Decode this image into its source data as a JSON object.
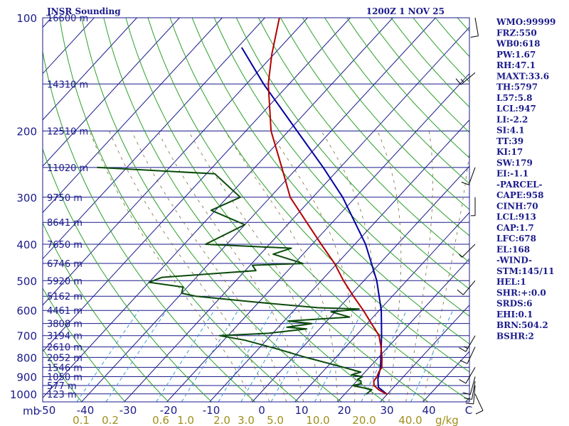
{
  "chart_data": {
    "type": "skew-t",
    "title": "JNSR Sounding",
    "valid_time": "1200Z  1 NOV 25",
    "pressure_label": "mb",
    "moisture_unit": "g/kg",
    "pressure_levels": [
      100,
      200,
      300,
      400,
      500,
      600,
      700,
      800,
      900,
      1000
    ],
    "height_labels": [
      {
        "p": 100,
        "label": "16600 m"
      },
      {
        "p": 150,
        "label": "14310 m"
      },
      {
        "p": 200,
        "label": "12510 m"
      },
      {
        "p": 250,
        "label": "11020 m"
      },
      {
        "p": 300,
        "label": "9750 m"
      },
      {
        "p": 350,
        "label": "8641 m"
      },
      {
        "p": 400,
        "label": "7650 m"
      },
      {
        "p": 450,
        "label": "6746 m"
      },
      {
        "p": 500,
        "label": "5920 m"
      },
      {
        "p": 550,
        "label": "5162 m"
      },
      {
        "p": 600,
        "label": "4461 m"
      },
      {
        "p": 650,
        "label": "3808 m"
      },
      {
        "p": 700,
        "label": "3194 m"
      },
      {
        "p": 750,
        "label": "2610 m"
      },
      {
        "p": 800,
        "label": "2052 m"
      },
      {
        "p": 850,
        "label": "1546 m"
      },
      {
        "p": 900,
        "label": "1050 m"
      },
      {
        "p": 950,
        "label": "577 m"
      },
      {
        "p": 1000,
        "label": "123 m"
      }
    ],
    "temperature_ticks": [
      "-50",
      "-40",
      "-30",
      "-20",
      "-10",
      "0",
      "10",
      "20",
      "30",
      "40",
      "C"
    ],
    "mixing_ratio_ticks": [
      "0.1",
      "0.2",
      "0.6",
      "1.0",
      "2.0",
      "3.0",
      "5.0",
      "10.0",
      "20.0",
      "40.0"
    ],
    "temperature_profile": [
      [
        1003,
        30.0
      ],
      [
        990,
        28.6
      ],
      [
        975,
        27.0
      ],
      [
        950,
        25.0
      ],
      [
        925,
        24.0
      ],
      [
        900,
        23.8
      ],
      [
        875,
        23.2
      ],
      [
        850,
        22.9
      ],
      [
        800,
        20.8
      ],
      [
        750,
        18.3
      ],
      [
        700,
        15.4
      ],
      [
        650,
        11.0
      ],
      [
        600,
        6.3
      ],
      [
        550,
        0.9
      ],
      [
        500,
        -4.8
      ],
      [
        450,
        -10.6
      ],
      [
        400,
        -17.9
      ],
      [
        350,
        -26.0
      ],
      [
        300,
        -35.3
      ],
      [
        250,
        -43.7
      ],
      [
        200,
        -54.1
      ],
      [
        150,
        -64.9
      ],
      [
        125,
        -70.5
      ],
      [
        100,
        -76.6
      ]
    ],
    "dewpoint_profile": [
      [
        1003,
        25.0
      ],
      [
        975,
        25.4
      ],
      [
        950,
        20.0
      ],
      [
        940,
        21.6
      ],
      [
        925,
        21.0
      ],
      [
        915,
        19.8
      ],
      [
        900,
        20.4
      ],
      [
        890,
        17.4
      ],
      [
        875,
        19.0
      ],
      [
        860,
        16.0
      ],
      [
        850,
        14.0
      ],
      [
        800,
        3.0
      ],
      [
        760,
        -5.5
      ],
      [
        720,
        -15.0
      ],
      [
        700,
        -22.0
      ],
      [
        690,
        -11.0
      ],
      [
        672,
        -3.0
      ],
      [
        665,
        -8.0
      ],
      [
        650,
        -3.0
      ],
      [
        640,
        -9.0
      ],
      [
        625,
        4.5
      ],
      [
        605,
        -1.0
      ],
      [
        595,
        5.0
      ],
      [
        590,
        -5.0
      ],
      [
        570,
        -21.0
      ],
      [
        550,
        -36.0
      ],
      [
        540,
        -40.0
      ],
      [
        520,
        -41.0
      ],
      [
        505,
        -50.0
      ],
      [
        490,
        -48.0
      ],
      [
        470,
        -27.5
      ],
      [
        455,
        -29.5
      ],
      [
        450,
        -18.0
      ],
      [
        425,
        -27.0
      ],
      [
        410,
        -24.0
      ],
      [
        400,
        -45.0
      ],
      [
        355,
        -40.0
      ],
      [
        325,
        -51.0
      ],
      [
        300,
        -47.0
      ],
      [
        260,
        -58.0
      ],
      [
        250,
        -87.0
      ]
    ],
    "parcel_profile": [
      [
        1003,
        30.0
      ],
      [
        960,
        26.4
      ],
      [
        913,
        24.5
      ],
      [
        850,
        22.6
      ],
      [
        700,
        16.0
      ],
      [
        600,
        10.5
      ],
      [
        500,
        3.0
      ],
      [
        400,
        -7.5
      ],
      [
        300,
        -23.0
      ],
      [
        250,
        -34.0
      ],
      [
        200,
        -48.0
      ],
      [
        150,
        -66.0
      ],
      [
        120,
        -79.0
      ]
    ],
    "wind_barbs": [
      {
        "p": 1000,
        "dir": 155,
        "spd": 10
      },
      {
        "p": 950,
        "dir": 185,
        "spd": 10
      },
      {
        "p": 925,
        "dir": 190,
        "spd": 10
      },
      {
        "p": 900,
        "dir": 195,
        "spd": 10
      },
      {
        "p": 850,
        "dir": 210,
        "spd": 10
      },
      {
        "p": 750,
        "dir": 205,
        "spd": 10
      },
      {
        "p": 700,
        "dir": 210,
        "spd": 15
      },
      {
        "p": 500,
        "dir": 220,
        "spd": 10
      },
      {
        "p": 400,
        "dir": 225,
        "spd": 5
      },
      {
        "p": 300,
        "dir": 180,
        "spd": 5
      },
      {
        "p": 250,
        "dir": 200,
        "spd": 10
      },
      {
        "p": 140,
        "dir": 230,
        "spd": 15
      },
      {
        "p": 100,
        "dir": 170,
        "spd": 10
      }
    ],
    "indices": [
      "WMO:99999",
      "FRZ:550",
      "WB0:618",
      "PW:1.67",
      "RH:47.1",
      "MAXT:33.6",
      "TH:5797",
      "L57:5.8",
      "LCL:947",
      "LI:-2.2",
      "SI:4.1",
      "TT:39",
      "KI:17",
      "SW:179",
      "EI:-1.1",
      "-PARCEL-",
      "CAPE:958",
      "CINH:70",
      "LCL:913",
      "CAP:1.7",
      "LFC:678",
      "EL:168",
      "-WIND-",
      "STM:145/11",
      "HEL:1",
      "SHR:+:0.0",
      "SRDS:6",
      "EHI:0.1",
      "BRN:504.2",
      "BSHR:2"
    ],
    "colors": {
      "isobar": "#1a1a8c",
      "isotherm": "#1a1a8c",
      "dry_adiabat": "#2aa02a",
      "moist_adiabat": "#7a6a3a",
      "mixing_ratio": "#3a9ad8",
      "temperature": "#b40000",
      "dewpoint": "#0a4a0a",
      "parcel": "#0000a0",
      "wind": "#000000"
    }
  }
}
